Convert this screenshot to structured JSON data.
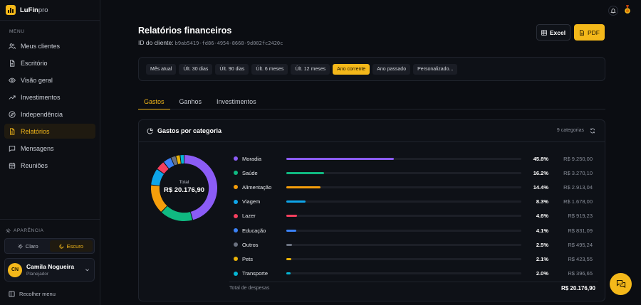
{
  "brand": {
    "name": "LuFin",
    "suffix": "pro"
  },
  "sidebar": {
    "menu_label": "MENU",
    "items": [
      {
        "label": "Meus clientes",
        "icon": "users-icon",
        "active": false
      },
      {
        "label": "Escritório",
        "icon": "file-icon",
        "active": false
      },
      {
        "label": "Visão geral",
        "icon": "eye-icon",
        "active": false
      },
      {
        "label": "Investimentos",
        "icon": "trending-up-icon",
        "active": false
      },
      {
        "label": "Independência",
        "icon": "compass-icon",
        "active": false
      },
      {
        "label": "Relatórios",
        "icon": "report-icon",
        "active": true
      },
      {
        "label": "Mensagens",
        "icon": "message-icon",
        "active": false
      },
      {
        "label": "Reuniões",
        "icon": "calendar-icon",
        "active": false
      }
    ],
    "appearance_label": "APARÊNCIA",
    "theme": {
      "light": "Claro",
      "dark": "Escuro",
      "selected": "dark"
    },
    "user": {
      "initials": "CN",
      "name": "Camila Nogueira",
      "role": "Planejador"
    },
    "collapse_label": "Recolher menu"
  },
  "header": {
    "title": "Relatórios financeiros",
    "client_id_label": "ID do cliente:",
    "client_id": "b9ab5419-fd86-4954-8668-9d002fc2420c",
    "excel_label": "Excel",
    "pdf_label": "PDF"
  },
  "filters": [
    {
      "label": "Mês atual",
      "active": false
    },
    {
      "label": "Últ. 30 dias",
      "active": false
    },
    {
      "label": "Últ. 90 dias",
      "active": false
    },
    {
      "label": "Últ. 6 meses",
      "active": false
    },
    {
      "label": "Últ. 12 meses",
      "active": false
    },
    {
      "label": "Ano corrente",
      "active": true
    },
    {
      "label": "Ano passado",
      "active": false
    },
    {
      "label": "Personalizado...",
      "active": false
    }
  ],
  "tabs": [
    {
      "label": "Gastos",
      "active": true
    },
    {
      "label": "Ganhos",
      "active": false
    },
    {
      "label": "Investimentos",
      "active": false
    }
  ],
  "card": {
    "title": "Gastos por categoria",
    "category_count": "9 categorias",
    "donut_total_label": "Total",
    "donut_total_value": "R$ 20.176,90",
    "total_label": "Total de despesas",
    "total_value": "R$ 20.176,90"
  },
  "chart_data": {
    "type": "pie",
    "categories": [
      "Moradia",
      "Saúde",
      "Alimentação",
      "Viagem",
      "Lazer",
      "Educação",
      "Outros",
      "Pets",
      "Transporte"
    ],
    "values": [
      9250.0,
      3270.1,
      2913.04,
      1678.0,
      919.23,
      831.09,
      495.24,
      423.55,
      396.65
    ],
    "percent_labels": [
      "45.8%",
      "16.2%",
      "14.4%",
      "8.3%",
      "4.6%",
      "4.1%",
      "2.5%",
      "2.1%",
      "2.0%"
    ],
    "value_labels": [
      "R$ 9.250,00",
      "R$ 3.270,10",
      "R$ 2.913,04",
      "R$ 1.678,00",
      "R$ 919,23",
      "R$ 831,09",
      "R$ 495,24",
      "R$ 423,55",
      "R$ 396,65"
    ],
    "colors": [
      "#8b5cf6",
      "#10b981",
      "#f59e0b",
      "#0ea5e9",
      "#f43f5e",
      "#3b82f6",
      "#6b7280",
      "#eab308",
      "#06b6d4"
    ]
  }
}
